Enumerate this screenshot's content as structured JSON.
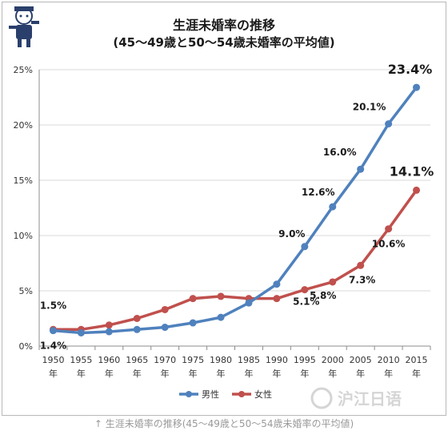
{
  "header": {
    "title_line1": "生涯未婚率の推移",
    "title_line2": "(45～49歳と50～54歳未婚率の平均値)"
  },
  "caption": "↑ 生涯未婚率の推移(45～49歳と50～54歳未婚率の平均値)",
  "watermark": "沪江日语",
  "chart_data": {
    "type": "line",
    "title": "生涯未婚率の推移",
    "subtitle": "(45～49歳と50～54歳未婚率の平均値)",
    "x": [
      "1950",
      "1955",
      "1960",
      "1965",
      "1970",
      "1975",
      "1980",
      "1985",
      "1990",
      "1995",
      "2000",
      "2005",
      "2010",
      "2015"
    ],
    "x_suffix": "年",
    "ylim": [
      0,
      25
    ],
    "y_ticks": [
      "0%",
      "5%",
      "10%",
      "15%",
      "20%",
      "25%"
    ],
    "y_tick_values": [
      0,
      5,
      10,
      15,
      20,
      25
    ],
    "grid": "horizontal",
    "legend": "bottom",
    "series": [
      {
        "name": "男性",
        "color": "#4f81bd",
        "values": [
          1.4,
          1.2,
          1.3,
          1.5,
          1.7,
          2.1,
          2.6,
          3.9,
          5.6,
          9.0,
          12.6,
          16.0,
          20.1,
          23.4
        ]
      },
      {
        "name": "女性",
        "color": "#c0504d",
        "values": [
          1.5,
          1.5,
          1.9,
          2.5,
          3.3,
          4.3,
          4.5,
          4.3,
          4.3,
          5.1,
          5.8,
          7.3,
          10.6,
          14.1
        ]
      }
    ],
    "annotations": [
      {
        "series": 0,
        "index": 0,
        "text": "1.4%",
        "size": "normal"
      },
      {
        "series": 0,
        "index": 9,
        "text": "9.0%",
        "size": "normal"
      },
      {
        "series": 0,
        "index": 10,
        "text": "12.6%",
        "size": "normal"
      },
      {
        "series": 0,
        "index": 11,
        "text": "16.0%",
        "size": "normal"
      },
      {
        "series": 0,
        "index": 12,
        "text": "20.1%",
        "size": "normal"
      },
      {
        "series": 0,
        "index": 13,
        "text": "23.4%",
        "size": "large"
      },
      {
        "series": 1,
        "index": 0,
        "text": "1.5%",
        "size": "normal"
      },
      {
        "series": 1,
        "index": 9,
        "text": "5.1%",
        "size": "normal"
      },
      {
        "series": 1,
        "index": 10,
        "text": "5.8%",
        "size": "normal"
      },
      {
        "series": 1,
        "index": 11,
        "text": "7.3%",
        "size": "normal"
      },
      {
        "series": 1,
        "index": 12,
        "text": "10.6%",
        "size": "normal"
      },
      {
        "series": 1,
        "index": 13,
        "text": "14.1%",
        "size": "large"
      }
    ]
  }
}
